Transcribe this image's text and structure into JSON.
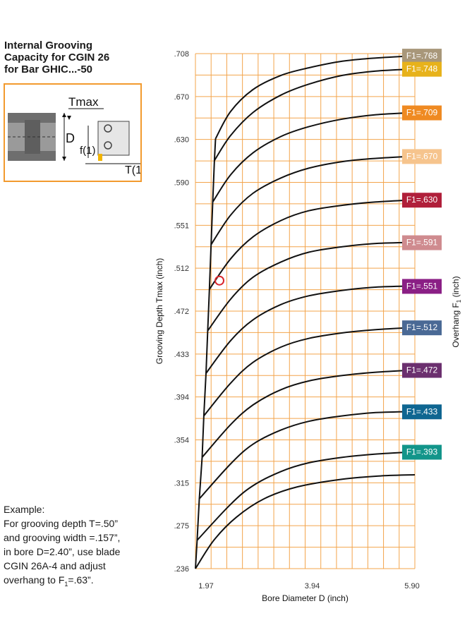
{
  "title_lines": [
    "Internal Grooving",
    "Capacity for CGIN 26",
    "for Bar GHIC...-50"
  ],
  "diagram": {
    "tmax_label": "Tmax",
    "d_label": "D",
    "f1_label": "f(1)",
    "t1_label": "T(1"
  },
  "example": {
    "heading": "Example:",
    "line1": "For grooving depth T=.50”",
    "line2": "and grooving width =.157”,",
    "line3": "in bore D=2.40”, use blade",
    "line4": "CGIN 26A-4 and adjust",
    "line5_pre": "overhang to F",
    "line5_sub": "1",
    "line5_post": "=.63”."
  },
  "chart_data": {
    "type": "line",
    "xlabel": "Bore Diameter D (inch)",
    "ylabel": "Grooving Depth Tmax (inch)",
    "right_label": "Overhang F",
    "right_label_sub": "1",
    "right_label_post": " (inch)",
    "x_ticks": [
      "1.97",
      "3.94",
      "5.90"
    ],
    "y_ticks": [
      ".708",
      ".670",
      ".630",
      ".590",
      ".551",
      ".512",
      ".472",
      ".433",
      ".394",
      ".354",
      ".315",
      ".275",
      ".236"
    ],
    "xlim": [
      1.97,
      5.9
    ],
    "ylim": [
      0.236,
      0.708
    ],
    "grid": true,
    "example_point": {
      "x": 2.4,
      "y": 0.5
    },
    "series": [
      {
        "name": "F1=.768",
        "color": "#a8977a",
        "points": [
          [
            2.33,
            0.63
          ],
          [
            2.6,
            0.655
          ],
          [
            3.0,
            0.675
          ],
          [
            3.5,
            0.688
          ],
          [
            4.0,
            0.695
          ],
          [
            4.6,
            0.701
          ],
          [
            5.2,
            0.704
          ],
          [
            5.9,
            0.706
          ]
        ]
      },
      {
        "name": "F1=.748",
        "color": "#e7b21b",
        "points": [
          [
            2.31,
            0.61
          ],
          [
            2.6,
            0.633
          ],
          [
            3.0,
            0.654
          ],
          [
            3.5,
            0.67
          ],
          [
            4.0,
            0.68
          ],
          [
            4.6,
            0.688
          ],
          [
            5.2,
            0.692
          ],
          [
            5.9,
            0.694
          ]
        ]
      },
      {
        "name": "F1=.709",
        "color": "#ef8a22",
        "points": [
          [
            2.28,
            0.572
          ],
          [
            2.6,
            0.597
          ],
          [
            3.0,
            0.617
          ],
          [
            3.5,
            0.632
          ],
          [
            4.0,
            0.641
          ],
          [
            4.6,
            0.648
          ],
          [
            5.2,
            0.652
          ],
          [
            5.9,
            0.654
          ]
        ]
      },
      {
        "name": "F1=.670",
        "color": "#f6c48d",
        "points": [
          [
            2.25,
            0.533
          ],
          [
            2.6,
            0.56
          ],
          [
            3.0,
            0.58
          ],
          [
            3.5,
            0.594
          ],
          [
            4.0,
            0.603
          ],
          [
            4.6,
            0.609
          ],
          [
            5.2,
            0.612
          ],
          [
            5.9,
            0.614
          ]
        ]
      },
      {
        "name": "F1=.630",
        "color": "#b01f3a",
        "points": [
          [
            2.22,
            0.492
          ],
          [
            2.6,
            0.52
          ],
          [
            3.0,
            0.54
          ],
          [
            3.5,
            0.555
          ],
          [
            4.0,
            0.564
          ],
          [
            4.6,
            0.569
          ],
          [
            5.2,
            0.572
          ],
          [
            5.9,
            0.574
          ]
        ]
      },
      {
        "name": "F1=.591",
        "color": "#cf8b8f",
        "points": [
          [
            2.19,
            0.454
          ],
          [
            2.6,
            0.483
          ],
          [
            3.0,
            0.503
          ],
          [
            3.5,
            0.517
          ],
          [
            4.0,
            0.526
          ],
          [
            4.6,
            0.531
          ],
          [
            5.2,
            0.534
          ],
          [
            5.9,
            0.535
          ]
        ]
      },
      {
        "name": "F1=.551",
        "color": "#8a1f85",
        "points": [
          [
            2.16,
            0.415
          ],
          [
            2.6,
            0.445
          ],
          [
            3.0,
            0.464
          ],
          [
            3.5,
            0.478
          ],
          [
            4.0,
            0.486
          ],
          [
            4.6,
            0.491
          ],
          [
            5.2,
            0.494
          ],
          [
            5.9,
            0.495
          ]
        ]
      },
      {
        "name": "F1=.512",
        "color": "#4a6995",
        "points": [
          [
            2.12,
            0.376
          ],
          [
            2.6,
            0.406
          ],
          [
            3.0,
            0.425
          ],
          [
            3.5,
            0.439
          ],
          [
            4.0,
            0.447
          ],
          [
            4.6,
            0.452
          ],
          [
            5.2,
            0.455
          ],
          [
            5.9,
            0.457
          ]
        ]
      },
      {
        "name": "F1=.472",
        "color": "#6b2f6e",
        "points": [
          [
            2.09,
            0.338
          ],
          [
            2.6,
            0.368
          ],
          [
            3.0,
            0.386
          ],
          [
            3.5,
            0.4
          ],
          [
            4.0,
            0.408
          ],
          [
            4.6,
            0.413
          ],
          [
            5.2,
            0.416
          ],
          [
            5.9,
            0.418
          ]
        ]
      },
      {
        "name": "F1=.433",
        "color": "#0f6691",
        "points": [
          [
            2.04,
            0.3
          ],
          [
            2.6,
            0.332
          ],
          [
            3.0,
            0.35
          ],
          [
            3.5,
            0.363
          ],
          [
            4.0,
            0.371
          ],
          [
            4.6,
            0.376
          ],
          [
            5.2,
            0.379
          ],
          [
            5.9,
            0.38
          ]
        ]
      },
      {
        "name": "F1=.393",
        "color": "#12958a",
        "points": [
          [
            2.0,
            0.262
          ],
          [
            2.6,
            0.295
          ],
          [
            3.0,
            0.312
          ],
          [
            3.5,
            0.325
          ],
          [
            4.0,
            0.333
          ],
          [
            4.6,
            0.338
          ],
          [
            5.2,
            0.341
          ],
          [
            5.9,
            0.343
          ]
        ]
      }
    ],
    "envelope": [
      [
        2.33,
        0.63
      ],
      [
        2.31,
        0.61
      ],
      [
        2.28,
        0.572
      ],
      [
        2.25,
        0.533
      ],
      [
        2.22,
        0.492
      ],
      [
        2.19,
        0.454
      ],
      [
        2.16,
        0.415
      ],
      [
        2.12,
        0.376
      ],
      [
        2.09,
        0.338
      ],
      [
        2.04,
        0.3
      ],
      [
        2.0,
        0.262
      ],
      [
        1.97,
        0.236
      ]
    ],
    "bottom_curve": [
      [
        1.97,
        0.236
      ],
      [
        2.3,
        0.262
      ],
      [
        2.7,
        0.283
      ],
      [
        3.2,
        0.3
      ],
      [
        3.8,
        0.311
      ],
      [
        4.6,
        0.318
      ],
      [
        5.3,
        0.321
      ],
      [
        5.9,
        0.322
      ]
    ]
  }
}
